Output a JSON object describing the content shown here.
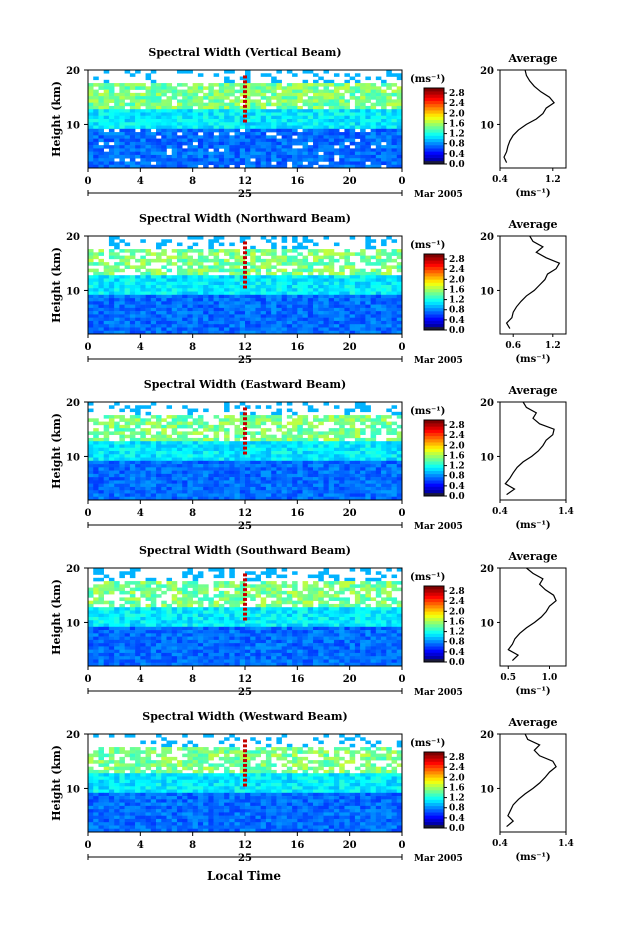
{
  "figure": {
    "footer_xlabel": "Local Time",
    "colorbar_unit": "(ms⁻¹)",
    "avg_title": "Average",
    "avg_unit": "(ms⁻¹)",
    "ylabel": "Height (km)"
  },
  "chart_data": [
    {
      "type": "heatmap",
      "title": "Spectral Width (Vertical Beam)",
      "xlabel": "Local Time",
      "ylabel": "Height (km)",
      "xlim": [
        0,
        24
      ],
      "ylim": [
        2,
        20
      ],
      "x_ticks": [
        "0",
        "4",
        "8",
        "12",
        "16",
        "20",
        "0"
      ],
      "y_ticks": [
        "10",
        "20"
      ],
      "date_label": "25",
      "month_label": "Mar 2005",
      "colorbar": {
        "label": "(ms⁻¹)",
        "ticks": [
          "0.0",
          "0.4",
          "0.8",
          "1.2",
          "1.6",
          "2.0",
          "2.4",
          "2.8"
        ],
        "range": [
          0,
          3.0
        ]
      },
      "profile": {
        "title": "Average",
        "xlabel": "(ms⁻¹)",
        "xlim": [
          0.4,
          1.4
        ],
        "x_ticks": [
          "0.4",
          "1.2"
        ],
        "y_ticks": [
          "10",
          "20"
        ],
        "heights_km": [
          3,
          4,
          5,
          6,
          7,
          8,
          9,
          10,
          11,
          12,
          13,
          14,
          15,
          16,
          17,
          18,
          19,
          20
        ],
        "values": [
          0.5,
          0.46,
          0.5,
          0.52,
          0.55,
          0.6,
          0.68,
          0.8,
          0.95,
          1.05,
          1.1,
          1.22,
          1.15,
          1.02,
          0.92,
          0.85,
          0.8,
          0.78
        ]
      }
    },
    {
      "type": "heatmap",
      "title": "Spectral Width (Northward Beam)",
      "xlabel": "Local Time",
      "ylabel": "Height (km)",
      "xlim": [
        0,
        24
      ],
      "ylim": [
        2,
        20
      ],
      "x_ticks": [
        "0",
        "4",
        "8",
        "12",
        "16",
        "20",
        "0"
      ],
      "y_ticks": [
        "10",
        "20"
      ],
      "date_label": "25",
      "month_label": "Mar 2005",
      "colorbar": {
        "label": "(ms⁻¹)",
        "ticks": [
          "0.0",
          "0.4",
          "0.8",
          "1.2",
          "1.6",
          "2.0",
          "2.4",
          "2.8"
        ],
        "range": [
          0,
          3.0
        ]
      },
      "profile": {
        "title": "Average",
        "xlabel": "(ms⁻¹)",
        "xlim": [
          0.4,
          1.4
        ],
        "x_ticks": [
          "0.6",
          "1.2"
        ],
        "y_ticks": [
          "10",
          "20"
        ],
        "heights_km": [
          3,
          4,
          5,
          6,
          7,
          8,
          9,
          10,
          11,
          12,
          13,
          14,
          15,
          16,
          17,
          18,
          19,
          20
        ],
        "values": [
          0.55,
          0.5,
          0.58,
          0.6,
          0.65,
          0.72,
          0.8,
          0.92,
          1.0,
          1.08,
          1.12,
          1.25,
          1.3,
          1.1,
          0.95,
          1.05,
          0.9,
          0.85
        ]
      }
    },
    {
      "type": "heatmap",
      "title": "Spectral Width (Eastward Beam)",
      "xlabel": "Local Time",
      "ylabel": "Height (km)",
      "xlim": [
        0,
        24
      ],
      "ylim": [
        2,
        20
      ],
      "x_ticks": [
        "0",
        "4",
        "8",
        "12",
        "16",
        "20",
        "0"
      ],
      "y_ticks": [
        "10",
        "20"
      ],
      "date_label": "25",
      "month_label": "Mar 2005",
      "colorbar": {
        "label": "(ms⁻¹)",
        "ticks": [
          "0.0",
          "0.4",
          "0.8",
          "1.2",
          "1.6",
          "2.0",
          "2.4",
          "2.8"
        ],
        "range": [
          0,
          3.0
        ]
      },
      "profile": {
        "title": "Average",
        "xlabel": "(ms⁻¹)",
        "xlim": [
          0.4,
          1.4
        ],
        "x_ticks": [
          "0.4",
          "1.4"
        ],
        "y_ticks": [
          "10",
          "20"
        ],
        "heights_km": [
          3,
          4,
          5,
          6,
          7,
          8,
          9,
          10,
          11,
          12,
          13,
          14,
          15,
          16,
          17,
          18,
          19,
          20
        ],
        "values": [
          0.5,
          0.62,
          0.48,
          0.55,
          0.6,
          0.66,
          0.75,
          0.88,
          0.98,
          1.05,
          1.1,
          1.2,
          1.22,
          1.0,
          0.9,
          0.95,
          0.8,
          0.75
        ]
      }
    },
    {
      "type": "heatmap",
      "title": "Spectral Width (Southward Beam)",
      "xlabel": "Local Time",
      "ylabel": "Height (km)",
      "xlim": [
        0,
        24
      ],
      "ylim": [
        2,
        20
      ],
      "x_ticks": [
        "0",
        "4",
        "8",
        "12",
        "16",
        "20",
        "0"
      ],
      "y_ticks": [
        "10",
        "20"
      ],
      "date_label": "25",
      "month_label": "Mar 2005",
      "colorbar": {
        "label": "(ms⁻¹)",
        "ticks": [
          "0.0",
          "0.4",
          "0.8",
          "1.2",
          "1.6",
          "2.0",
          "2.4",
          "2.8"
        ],
        "range": [
          0,
          3.0
        ]
      },
      "profile": {
        "title": "Average",
        "xlabel": "(ms⁻¹)",
        "xlim": [
          0.4,
          1.2
        ],
        "x_ticks": [
          "0.5",
          "1.0"
        ],
        "y_ticks": [
          "10",
          "20"
        ],
        "heights_km": [
          3,
          4,
          5,
          6,
          7,
          8,
          9,
          10,
          11,
          12,
          13,
          14,
          15,
          16,
          17,
          18,
          19,
          20
        ],
        "values": [
          0.55,
          0.62,
          0.5,
          0.55,
          0.58,
          0.64,
          0.72,
          0.82,
          0.9,
          0.96,
          1.0,
          1.08,
          1.05,
          0.95,
          0.88,
          0.92,
          0.8,
          0.72
        ]
      }
    },
    {
      "type": "heatmap",
      "title": "Spectral Width (Westward Beam)",
      "xlabel": "Local Time",
      "ylabel": "Height (km)",
      "xlim": [
        0,
        24
      ],
      "ylim": [
        2,
        20
      ],
      "x_ticks": [
        "0",
        "4",
        "8",
        "12",
        "16",
        "20",
        "0"
      ],
      "y_ticks": [
        "10",
        "20"
      ],
      "date_label": "25",
      "month_label": "Mar 2005",
      "colorbar": {
        "label": "(ms⁻¹)",
        "ticks": [
          "0.0",
          "0.4",
          "0.8",
          "1.2",
          "1.6",
          "2.0",
          "2.4",
          "2.8"
        ],
        "range": [
          0,
          3.0
        ]
      },
      "profile": {
        "title": "Average",
        "xlabel": "(ms⁻¹)",
        "xlim": [
          0.4,
          1.4
        ],
        "x_ticks": [
          "0.4",
          "1.4"
        ],
        "y_ticks": [
          "10",
          "20"
        ],
        "heights_km": [
          3,
          4,
          5,
          6,
          7,
          8,
          9,
          10,
          11,
          12,
          13,
          14,
          15,
          16,
          17,
          18,
          19,
          20
        ],
        "values": [
          0.5,
          0.6,
          0.52,
          0.56,
          0.6,
          0.68,
          0.78,
          0.9,
          1.0,
          1.08,
          1.15,
          1.25,
          1.2,
          1.0,
          0.92,
          1.0,
          0.82,
          0.78
        ]
      }
    }
  ]
}
